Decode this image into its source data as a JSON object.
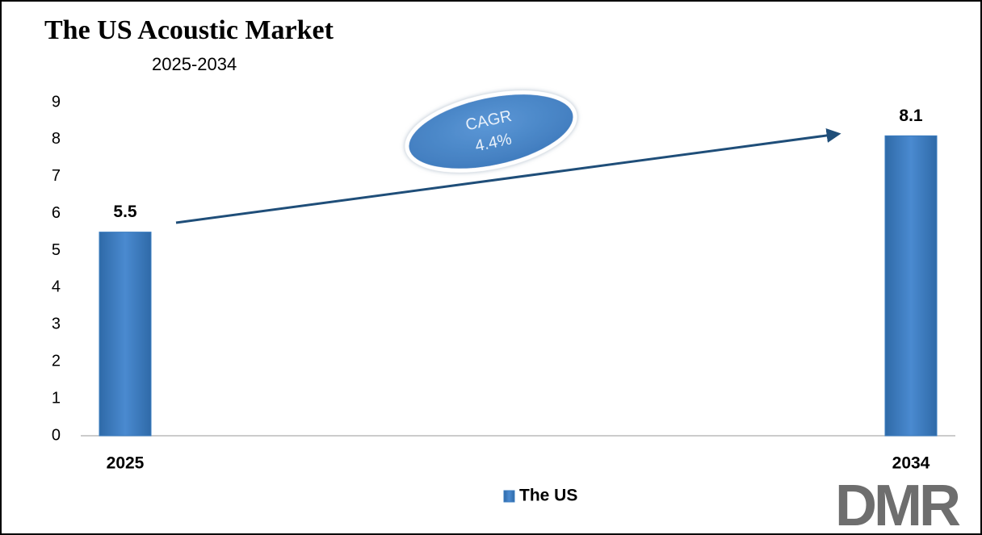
{
  "chart_data": {
    "type": "bar",
    "title": "The US Acoustic Market",
    "subtitle": "2025-2034",
    "categories": [
      "2025",
      "2034"
    ],
    "series": [
      {
        "name": "The US",
        "color": "#3a7cc0",
        "values": [
          5.5,
          8.1
        ]
      }
    ],
    "ylim": [
      0,
      9
    ],
    "yticks": [
      0,
      1,
      2,
      3,
      4,
      5,
      6,
      7,
      8,
      9
    ],
    "grid": false,
    "legend": "bottom",
    "annotation": [
      "CAGR",
      "4.4%"
    ],
    "logo": "DMR"
  }
}
